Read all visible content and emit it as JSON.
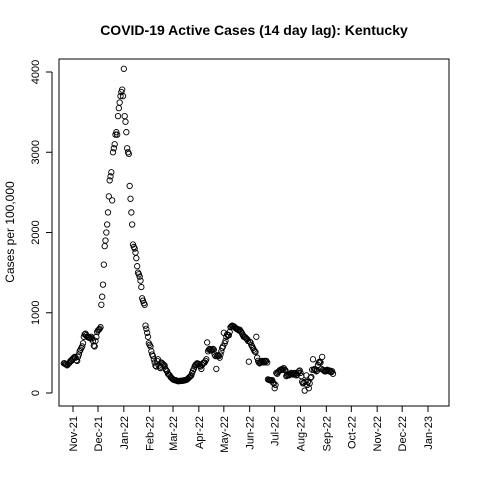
{
  "chart_data": {
    "type": "scatter",
    "title": "COVID-19 Active Cases (14 day lag): Kentucky",
    "xlabel": "",
    "ylabel": "Cases per 100,000",
    "x_ticks": [
      "Nov-21",
      "Dec-21",
      "Jan-22",
      "Feb-22",
      "Mar-22",
      "Apr-22",
      "May-22",
      "Jun-22",
      "Jul-22",
      "Aug-22",
      "Sep-22",
      "Oct-22",
      "Nov-22",
      "Dec-22",
      "Jan-23"
    ],
    "y_ticks": [
      0,
      1000,
      2000,
      3000,
      4000
    ],
    "xlim": [
      -11,
      420
    ],
    "ylim": [
      -150,
      4200
    ],
    "marker": "open-circle",
    "grid": false,
    "legend": "none",
    "x_unit": "days since 2021-11-01",
    "points": [
      [
        -11,
        370
      ],
      [
        -10,
        370
      ],
      [
        -9,
        360
      ],
      [
        -8,
        355
      ],
      [
        -7,
        345
      ],
      [
        -6,
        360
      ],
      [
        -5,
        370
      ],
      [
        -4,
        380
      ],
      [
        -3,
        400
      ],
      [
        -2,
        400
      ],
      [
        -1,
        420
      ],
      [
        0,
        430
      ],
      [
        1,
        440
      ],
      [
        2,
        450
      ],
      [
        3,
        440
      ],
      [
        4,
        410
      ],
      [
        5,
        400
      ],
      [
        6,
        450
      ],
      [
        7,
        480
      ],
      [
        8,
        520
      ],
      [
        9,
        540
      ],
      [
        10,
        560
      ],
      [
        11,
        580
      ],
      [
        12,
        620
      ],
      [
        13,
        700
      ],
      [
        14,
        730
      ],
      [
        15,
        740
      ],
      [
        16,
        720
      ],
      [
        17,
        700
      ],
      [
        18,
        700
      ],
      [
        19,
        690
      ],
      [
        20,
        690
      ],
      [
        21,
        680
      ],
      [
        22,
        700
      ],
      [
        23,
        680
      ],
      [
        24,
        650
      ],
      [
        25,
        590
      ],
      [
        26,
        580
      ],
      [
        27,
        650
      ],
      [
        28,
        700
      ],
      [
        29,
        760
      ],
      [
        30,
        780
      ],
      [
        31,
        790
      ],
      [
        32,
        800
      ],
      [
        33,
        820
      ],
      [
        34,
        1100
      ],
      [
        35,
        1200
      ],
      [
        36,
        1350
      ],
      [
        37,
        1600
      ],
      [
        38,
        1830
      ],
      [
        39,
        1900
      ],
      [
        40,
        2000
      ],
      [
        41,
        2100
      ],
      [
        42,
        2250
      ],
      [
        43,
        2450
      ],
      [
        44,
        2650
      ],
      [
        45,
        2700
      ],
      [
        46,
        2750
      ],
      [
        47,
        2400
      ],
      [
        48,
        3000
      ],
      [
        49,
        3050
      ],
      [
        50,
        3100
      ],
      [
        51,
        3220
      ],
      [
        52,
        3250
      ],
      [
        53,
        3220
      ],
      [
        54,
        3450
      ],
      [
        55,
        3550
      ],
      [
        56,
        3620
      ],
      [
        57,
        3700
      ],
      [
        58,
        3750
      ],
      [
        59,
        3780
      ],
      [
        60,
        3700
      ],
      [
        61,
        4040
      ],
      [
        62,
        3450
      ],
      [
        63,
        3380
      ],
      [
        64,
        3250
      ],
      [
        65,
        3050
      ],
      [
        66,
        3000
      ],
      [
        67,
        2980
      ],
      [
        68,
        2580
      ],
      [
        69,
        2420
      ],
      [
        70,
        2250
      ],
      [
        71,
        2100
      ],
      [
        72,
        1850
      ],
      [
        73,
        1820
      ],
      [
        74,
        1800
      ],
      [
        75,
        1750
      ],
      [
        76,
        1680
      ],
      [
        77,
        1580
      ],
      [
        78,
        1500
      ],
      [
        79,
        1480
      ],
      [
        80,
        1450
      ],
      [
        81,
        1400
      ],
      [
        82,
        1320
      ],
      [
        83,
        1180
      ],
      [
        84,
        1150
      ],
      [
        85,
        1120
      ],
      [
        86,
        1100
      ],
      [
        87,
        840
      ],
      [
        88,
        800
      ],
      [
        89,
        750
      ],
      [
        90,
        700
      ],
      [
        91,
        620
      ],
      [
        92,
        600
      ],
      [
        93,
        580
      ],
      [
        94,
        520
      ],
      [
        95,
        480
      ],
      [
        96,
        460
      ],
      [
        97,
        420
      ],
      [
        98,
        380
      ],
      [
        99,
        340
      ],
      [
        100,
        330
      ],
      [
        101,
        400
      ],
      [
        102,
        420
      ],
      [
        103,
        340
      ],
      [
        104,
        320
      ],
      [
        105,
        310
      ],
      [
        106,
        380
      ],
      [
        107,
        370
      ],
      [
        108,
        360
      ],
      [
        109,
        350
      ],
      [
        110,
        340
      ],
      [
        111,
        300
      ],
      [
        112,
        280
      ],
      [
        113,
        270
      ],
      [
        114,
        240
      ],
      [
        115,
        230
      ],
      [
        116,
        220
      ],
      [
        117,
        200
      ],
      [
        118,
        190
      ],
      [
        119,
        180
      ],
      [
        120,
        170
      ],
      [
        121,
        165
      ],
      [
        122,
        160
      ],
      [
        123,
        160
      ],
      [
        124,
        155
      ],
      [
        125,
        150
      ],
      [
        126,
        148
      ],
      [
        127,
        148
      ],
      [
        128,
        150
      ],
      [
        129,
        150
      ],
      [
        130,
        150
      ],
      [
        131,
        152
      ],
      [
        132,
        155
      ],
      [
        133,
        155
      ],
      [
        134,
        160
      ],
      [
        135,
        160
      ],
      [
        136,
        165
      ],
      [
        137,
        170
      ],
      [
        138,
        180
      ],
      [
        139,
        190
      ],
      [
        140,
        200
      ],
      [
        141,
        210
      ],
      [
        142,
        220
      ],
      [
        143,
        250
      ],
      [
        144,
        280
      ],
      [
        145,
        300
      ],
      [
        146,
        330
      ],
      [
        147,
        350
      ],
      [
        148,
        360
      ],
      [
        149,
        370
      ],
      [
        150,
        365
      ],
      [
        151,
        360
      ],
      [
        152,
        340
      ],
      [
        153,
        330
      ],
      [
        154,
        300
      ],
      [
        155,
        350
      ],
      [
        156,
        370
      ],
      [
        157,
        380
      ],
      [
        158,
        380
      ],
      [
        159,
        400
      ],
      [
        160,
        420
      ],
      [
        161,
        630
      ],
      [
        162,
        520
      ],
      [
        163,
        540
      ],
      [
        164,
        550
      ],
      [
        165,
        540
      ],
      [
        166,
        530
      ],
      [
        167,
        540
      ],
      [
        168,
        550
      ],
      [
        169,
        540
      ],
      [
        170,
        480
      ],
      [
        171,
        460
      ],
      [
        172,
        300
      ],
      [
        173,
        460
      ],
      [
        174,
        470
      ],
      [
        175,
        460
      ],
      [
        176,
        440
      ],
      [
        177,
        480
      ],
      [
        178,
        520
      ],
      [
        179,
        560
      ],
      [
        180,
        580
      ],
      [
        181,
        750
      ],
      [
        182,
        620
      ],
      [
        183,
        650
      ],
      [
        184,
        700
      ],
      [
        185,
        730
      ],
      [
        186,
        720
      ],
      [
        187,
        720
      ],
      [
        188,
        760
      ],
      [
        189,
        820
      ],
      [
        190,
        830
      ],
      [
        191,
        840
      ],
      [
        192,
        835
      ],
      [
        193,
        830
      ],
      [
        194,
        820
      ],
      [
        195,
        810
      ],
      [
        196,
        800
      ],
      [
        197,
        800
      ],
      [
        198,
        790
      ],
      [
        199,
        780
      ],
      [
        200,
        790
      ],
      [
        201,
        770
      ],
      [
        202,
        760
      ],
      [
        203,
        740
      ],
      [
        204,
        720
      ],
      [
        205,
        700
      ],
      [
        206,
        700
      ],
      [
        207,
        690
      ],
      [
        208,
        680
      ],
      [
        209,
        670
      ],
      [
        210,
        650
      ],
      [
        211,
        390
      ],
      [
        212,
        640
      ],
      [
        213,
        630
      ],
      [
        214,
        600
      ],
      [
        215,
        580
      ],
      [
        216,
        560
      ],
      [
        217,
        540
      ],
      [
        218,
        520
      ],
      [
        219,
        510
      ],
      [
        220,
        700
      ],
      [
        221,
        440
      ],
      [
        222,
        400
      ],
      [
        223,
        380
      ],
      [
        224,
        370
      ],
      [
        225,
        380
      ],
      [
        226,
        390
      ],
      [
        227,
        400
      ],
      [
        228,
        390
      ],
      [
        229,
        380
      ],
      [
        230,
        400
      ],
      [
        231,
        390
      ],
      [
        232,
        400
      ],
      [
        233,
        380
      ],
      [
        234,
        170
      ],
      [
        235,
        165
      ],
      [
        236,
        160
      ],
      [
        237,
        160
      ],
      [
        238,
        155
      ],
      [
        239,
        160
      ],
      [
        240,
        130
      ],
      [
        241,
        120
      ],
      [
        242,
        60
      ],
      [
        243,
        100
      ],
      [
        244,
        250
      ],
      [
        245,
        240
      ],
      [
        246,
        260
      ],
      [
        247,
        270
      ],
      [
        248,
        280
      ],
      [
        249,
        290
      ],
      [
        250,
        290
      ],
      [
        251,
        300
      ],
      [
        252,
        290
      ],
      [
        253,
        310
      ],
      [
        254,
        290
      ],
      [
        255,
        280
      ],
      [
        256,
        210
      ],
      [
        257,
        220
      ],
      [
        258,
        230
      ],
      [
        259,
        220
      ],
      [
        260,
        230
      ],
      [
        261,
        240
      ],
      [
        262,
        250
      ],
      [
        263,
        240
      ],
      [
        264,
        230
      ],
      [
        265,
        240
      ],
      [
        266,
        250
      ],
      [
        267,
        240
      ],
      [
        268,
        220
      ],
      [
        269,
        230
      ],
      [
        270,
        250
      ],
      [
        271,
        270
      ],
      [
        272,
        280
      ],
      [
        273,
        250
      ],
      [
        274,
        210
      ],
      [
        275,
        140
      ],
      [
        276,
        120
      ],
      [
        277,
        130
      ],
      [
        278,
        30
      ],
      [
        279,
        140
      ],
      [
        280,
        220
      ],
      [
        281,
        100
      ],
      [
        282,
        140
      ],
      [
        283,
        60
      ],
      [
        284,
        120
      ],
      [
        285,
        190
      ],
      [
        286,
        200
      ],
      [
        287,
        290
      ],
      [
        288,
        420
      ],
      [
        289,
        290
      ],
      [
        290,
        300
      ],
      [
        291,
        290
      ],
      [
        292,
        270
      ],
      [
        293,
        280
      ],
      [
        294,
        350
      ],
      [
        295,
        380
      ],
      [
        296,
        390
      ],
      [
        297,
        380
      ],
      [
        298,
        300
      ],
      [
        299,
        450
      ],
      [
        300,
        290
      ],
      [
        301,
        280
      ],
      [
        302,
        270
      ],
      [
        303,
        270
      ],
      [
        304,
        280
      ],
      [
        305,
        290
      ],
      [
        306,
        280
      ],
      [
        307,
        270
      ],
      [
        308,
        280
      ],
      [
        309,
        270
      ],
      [
        310,
        260
      ],
      [
        311,
        270
      ],
      [
        312,
        240
      ]
    ]
  }
}
